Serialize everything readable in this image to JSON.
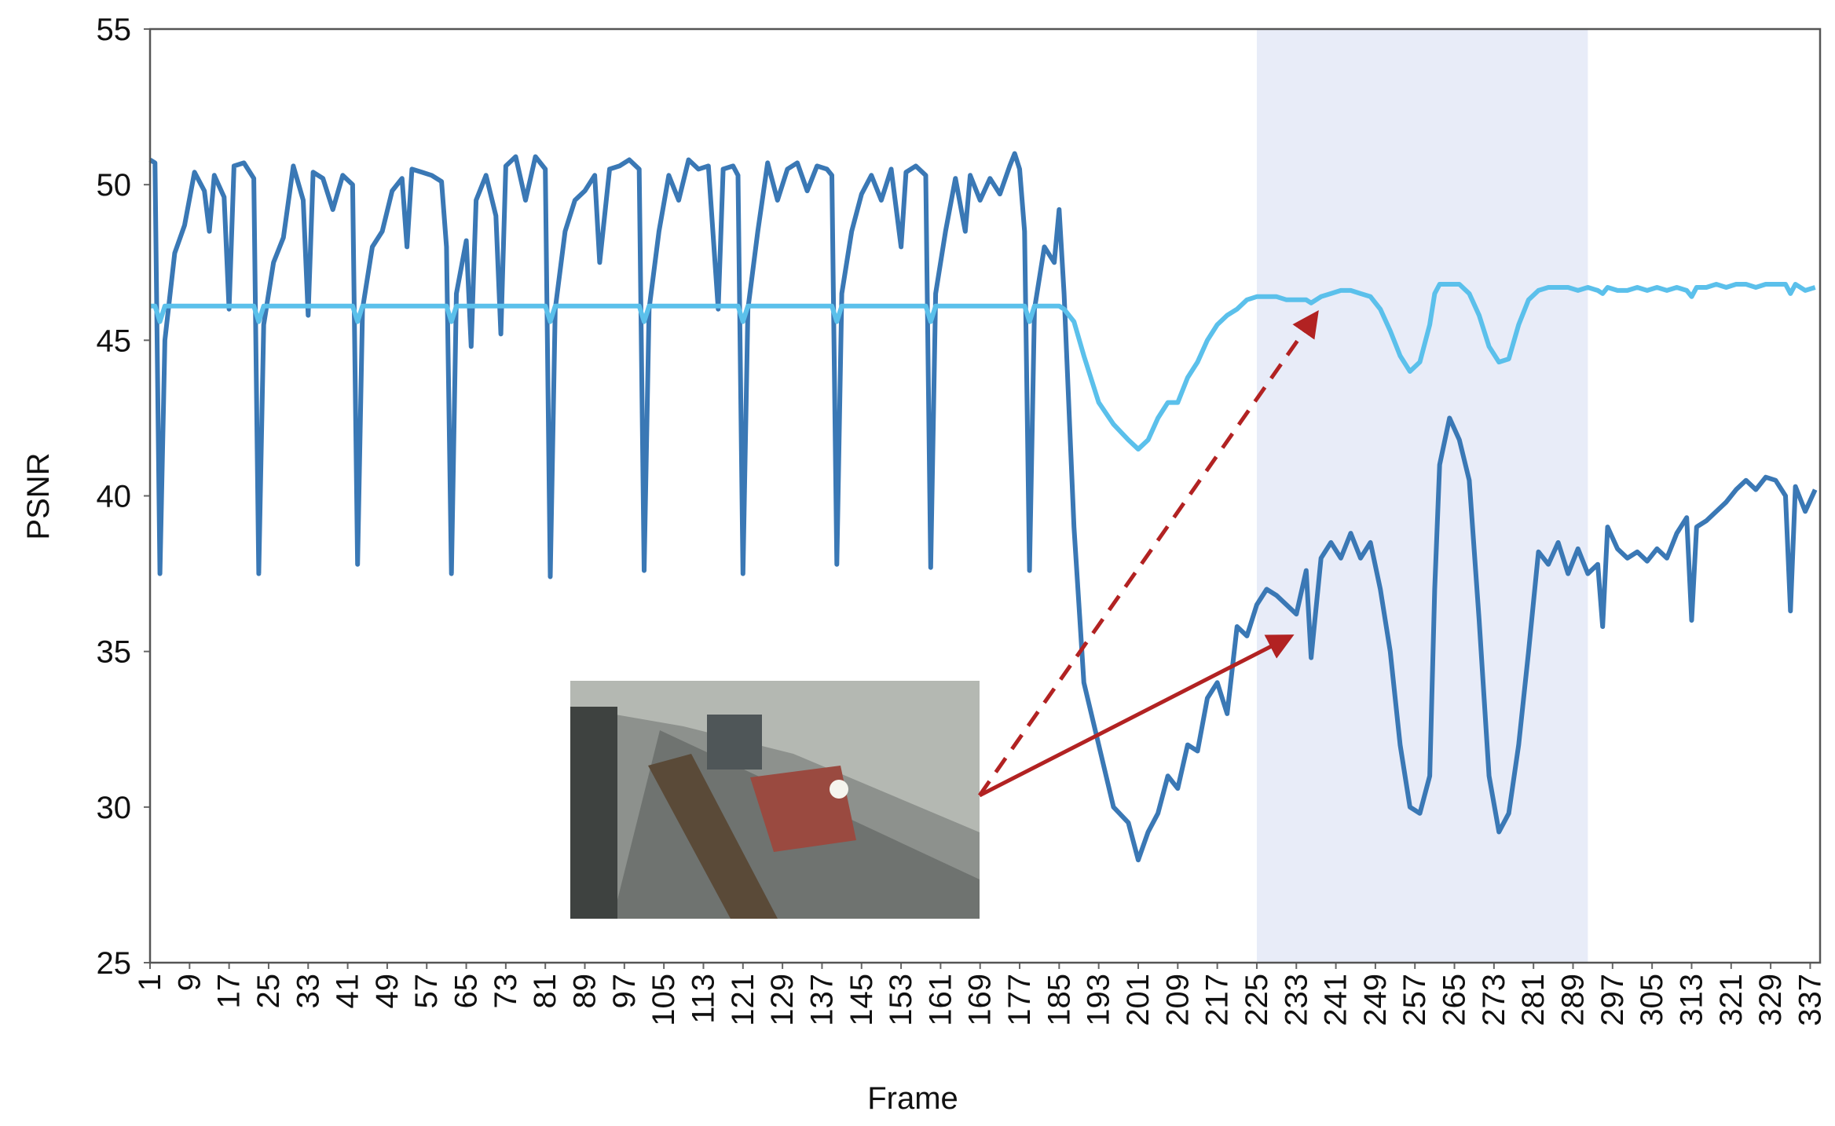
{
  "chart_data": {
    "type": "line",
    "xlabel": "Frame",
    "ylabel": "PSNR",
    "xlim": [
      1,
      339
    ],
    "ylim": [
      25,
      55
    ],
    "yticks": [
      25,
      30,
      35,
      40,
      45,
      50,
      55
    ],
    "xticks": [
      1,
      9,
      17,
      25,
      33,
      41,
      49,
      57,
      65,
      73,
      81,
      89,
      97,
      105,
      113,
      121,
      129,
      137,
      145,
      153,
      161,
      169,
      177,
      185,
      193,
      201,
      209,
      217,
      225,
      233,
      241,
      249,
      257,
      265,
      273,
      281,
      289,
      297,
      305,
      313,
      321,
      329,
      337
    ],
    "highlight_xrange": [
      225,
      292
    ],
    "x": [
      1,
      2,
      3,
      4,
      6,
      8,
      10,
      12,
      13,
      14,
      16,
      17,
      18,
      20,
      22,
      23,
      24,
      26,
      28,
      30,
      32,
      33,
      34,
      36,
      38,
      40,
      42,
      43,
      44,
      46,
      48,
      50,
      52,
      53,
      54,
      56,
      58,
      60,
      61,
      62,
      63,
      65,
      66,
      67,
      69,
      71,
      72,
      73,
      75,
      77,
      79,
      81,
      82,
      83,
      85,
      87,
      89,
      91,
      92,
      94,
      96,
      98,
      100,
      101,
      102,
      104,
      106,
      108,
      110,
      112,
      114,
      116,
      117,
      119,
      120,
      121,
      122,
      124,
      126,
      128,
      130,
      132,
      134,
      136,
      138,
      139,
      140,
      141,
      143,
      145,
      147,
      149,
      151,
      153,
      154,
      156,
      158,
      159,
      160,
      162,
      164,
      166,
      167,
      169,
      171,
      173,
      175,
      176,
      177,
      178,
      179,
      180,
      182,
      184,
      185,
      186,
      188,
      190,
      193,
      196,
      199,
      201,
      203,
      205,
      207,
      209,
      211,
      213,
      215,
      217,
      219,
      221,
      223,
      225,
      227,
      229,
      231,
      233,
      235,
      236,
      238,
      240,
      242,
      244,
      246,
      248,
      250,
      252,
      254,
      256,
      258,
      260,
      261,
      262,
      264,
      266,
      268,
      270,
      272,
      274,
      276,
      278,
      280,
      282,
      284,
      286,
      288,
      290,
      292,
      294,
      295,
      296,
      298,
      300,
      302,
      304,
      306,
      308,
      310,
      312,
      313,
      314,
      316,
      318,
      320,
      322,
      324,
      326,
      328,
      330,
      332,
      333,
      334,
      336,
      338
    ],
    "series": [
      {
        "color": "#3a78b5",
        "values": [
          50.8,
          50.7,
          37.5,
          45,
          47.8,
          48.7,
          50.4,
          49.8,
          48.5,
          50.3,
          49.6,
          46,
          50.6,
          50.7,
          50.2,
          37.5,
          45.5,
          47.5,
          48.3,
          50.6,
          49.5,
          45.8,
          50.4,
          50.2,
          49.2,
          50.3,
          50,
          37.8,
          46,
          48,
          48.5,
          49.8,
          50.2,
          48,
          50.5,
          50.4,
          50.3,
          50.1,
          48,
          37.5,
          46.5,
          48.2,
          44.8,
          49.5,
          50.3,
          49,
          45.2,
          50.6,
          50.9,
          49.5,
          50.9,
          50.5,
          37.4,
          46,
          48.5,
          49.5,
          49.8,
          50.3,
          47.5,
          50.5,
          50.6,
          50.8,
          50.5,
          37.6,
          46,
          48.5,
          50.3,
          49.5,
          50.8,
          50.5,
          50.6,
          46,
          50.5,
          50.6,
          50.3,
          37.5,
          46,
          48.5,
          50.7,
          49.5,
          50.5,
          50.7,
          49.8,
          50.6,
          50.5,
          50.3,
          37.8,
          46.5,
          48.5,
          49.7,
          50.3,
          49.5,
          50.5,
          48,
          50.4,
          50.6,
          50.3,
          37.7,
          46.5,
          48.5,
          50.2,
          48.5,
          50.3,
          49.5,
          50.2,
          49.7,
          50.6,
          51,
          50.5,
          48.5,
          37.6,
          46,
          48,
          47.5,
          49.2,
          46.5,
          39,
          34,
          32,
          30,
          29.5,
          28.3,
          29.2,
          29.8,
          31,
          30.6,
          32,
          31.8,
          33.5,
          34,
          33,
          35.8,
          35.5,
          36.5,
          37,
          36.8,
          36.5,
          36.2,
          37.6,
          34.8,
          38,
          38.5,
          38,
          38.8,
          38,
          38.5,
          37,
          35,
          32,
          30,
          29.8,
          31,
          37,
          41,
          42.5,
          41.8,
          40.5,
          36,
          31,
          29.2,
          29.8,
          32,
          35,
          38.2,
          37.8,
          38.5,
          37.5,
          38.3,
          37.5,
          37.8,
          35.8,
          39,
          38.3,
          38,
          38.2,
          37.9,
          38.3,
          38,
          38.8,
          39.3,
          36,
          39,
          39.2,
          39.5,
          39.8,
          40.2,
          40.5,
          40.2,
          40.6,
          40.5,
          40,
          36.3,
          40.3,
          39.5,
          40.2
        ]
      },
      {
        "color": "#5bc0eb",
        "values": [
          46.1,
          46.1,
          45.6,
          46.1,
          46.1,
          46.1,
          46.1,
          46.1,
          46.1,
          46.1,
          46.1,
          46.1,
          46.1,
          46.1,
          46.1,
          45.6,
          46.1,
          46.1,
          46.1,
          46.1,
          46.1,
          46.1,
          46.1,
          46.1,
          46.1,
          46.1,
          46.1,
          45.6,
          46.1,
          46.1,
          46.1,
          46.1,
          46.1,
          46.1,
          46.1,
          46.1,
          46.1,
          46.1,
          46.1,
          45.6,
          46.1,
          46.1,
          46.1,
          46.1,
          46.1,
          46.1,
          46.1,
          46.1,
          46.1,
          46.1,
          46.1,
          46.1,
          45.6,
          46.1,
          46.1,
          46.1,
          46.1,
          46.1,
          46.1,
          46.1,
          46.1,
          46.1,
          46.1,
          45.6,
          46.1,
          46.1,
          46.1,
          46.1,
          46.1,
          46.1,
          46.1,
          46.1,
          46.1,
          46.1,
          46.1,
          45.6,
          46.1,
          46.1,
          46.1,
          46.1,
          46.1,
          46.1,
          46.1,
          46.1,
          46.1,
          46.1,
          45.6,
          46.1,
          46.1,
          46.1,
          46.1,
          46.1,
          46.1,
          46.1,
          46.1,
          46.1,
          46.1,
          45.6,
          46.1,
          46.1,
          46.1,
          46.1,
          46.1,
          46.1,
          46.1,
          46.1,
          46.1,
          46.1,
          46.1,
          46.1,
          45.6,
          46.1,
          46.1,
          46.1,
          46.1,
          46.0,
          45.6,
          44.5,
          43,
          42.3,
          41.8,
          41.5,
          41.8,
          42.5,
          43,
          43,
          43.8,
          44.3,
          45,
          45.5,
          45.8,
          46,
          46.3,
          46.4,
          46.4,
          46.4,
          46.3,
          46.3,
          46.3,
          46.2,
          46.4,
          46.5,
          46.6,
          46.6,
          46.5,
          46.4,
          46,
          45.3,
          44.5,
          44,
          44.3,
          45.5,
          46.5,
          46.8,
          46.8,
          46.8,
          46.5,
          45.8,
          44.8,
          44.3,
          44.4,
          45.5,
          46.3,
          46.6,
          46.7,
          46.7,
          46.7,
          46.6,
          46.7,
          46.6,
          46.5,
          46.7,
          46.6,
          46.6,
          46.7,
          46.6,
          46.7,
          46.6,
          46.7,
          46.6,
          46.4,
          46.7,
          46.7,
          46.8,
          46.7,
          46.8,
          46.8,
          46.7,
          46.8,
          46.8,
          46.8,
          46.5,
          46.8,
          46.6,
          46.7
        ]
      }
    ]
  }
}
